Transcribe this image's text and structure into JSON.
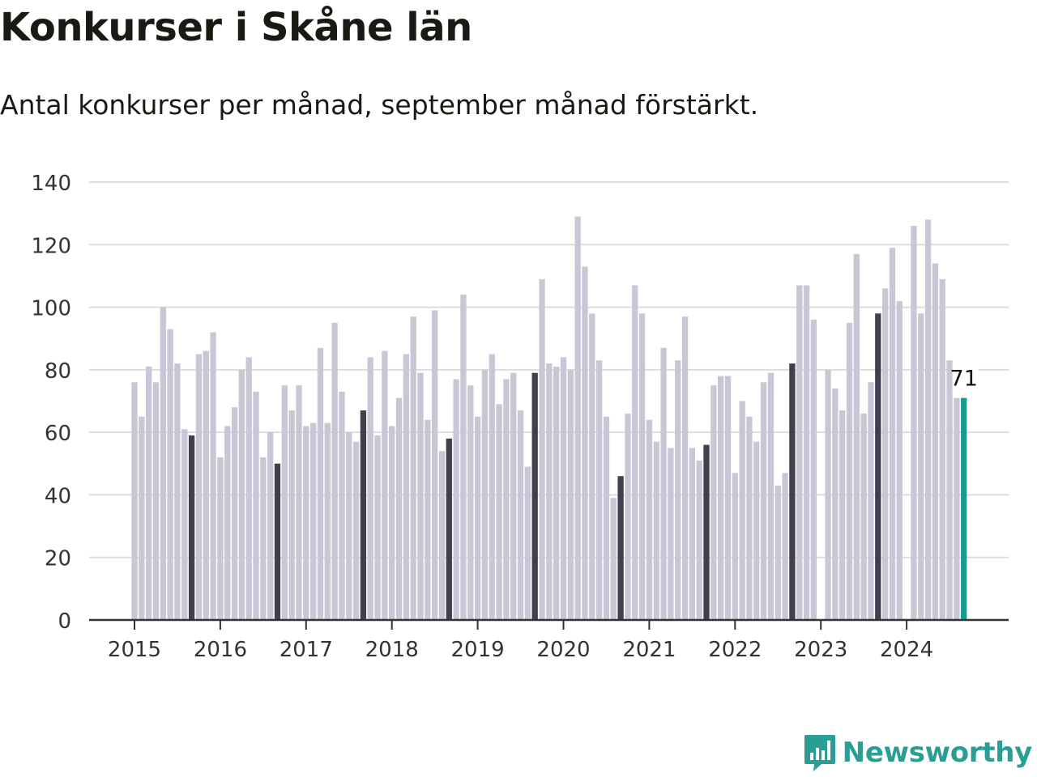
{
  "header": {
    "title": "Konkurser i Skåne län",
    "subtitle": "Antal konkurser per månad, september månad förstärkt."
  },
  "brand": {
    "name": "Newsworthy",
    "icon": "bar-chart-speech-bubble-icon"
  },
  "colors": {
    "bar": "#c8c7d5",
    "highlight": "#41404e",
    "latest": "#1b9a92",
    "grid": "#dddddd",
    "axis": "#333333",
    "brand": "#2a9d95"
  },
  "chart_data": {
    "type": "bar",
    "x_start": "2015-01",
    "x_ticks": [
      "2015",
      "2016",
      "2017",
      "2018",
      "2019",
      "2020",
      "2021",
      "2022",
      "2023",
      "2024"
    ],
    "y_ticks": [
      0,
      20,
      40,
      60,
      80,
      100,
      120,
      140
    ],
    "ylim": [
      0,
      140
    ],
    "highlight_month": "september",
    "grid": true,
    "values": [
      76,
      65,
      81,
      76,
      100,
      93,
      82,
      61,
      59,
      85,
      86,
      92,
      52,
      62,
      68,
      80,
      84,
      73,
      52,
      60,
      50,
      75,
      67,
      75,
      62,
      63,
      87,
      63,
      95,
      73,
      60,
      57,
      67,
      84,
      59,
      86,
      62,
      71,
      85,
      97,
      79,
      64,
      99,
      54,
      58,
      77,
      104,
      75,
      65,
      80,
      85,
      69,
      77,
      79,
      67,
      49,
      79,
      109,
      82,
      81,
      84,
      80,
      129,
      113,
      98,
      83,
      65,
      39,
      46,
      66,
      107,
      98,
      64,
      57,
      87,
      55,
      83,
      97,
      55,
      51,
      56,
      75,
      78,
      78,
      47,
      70,
      65,
      57,
      76,
      79,
      43,
      47,
      82,
      107,
      107,
      96,
      0,
      80,
      74,
      67,
      95,
      117,
      66,
      76,
      98,
      106,
      119,
      102,
      0,
      126,
      98,
      128,
      114,
      109,
      83,
      71,
      71
    ],
    "last_value_label": "71"
  }
}
